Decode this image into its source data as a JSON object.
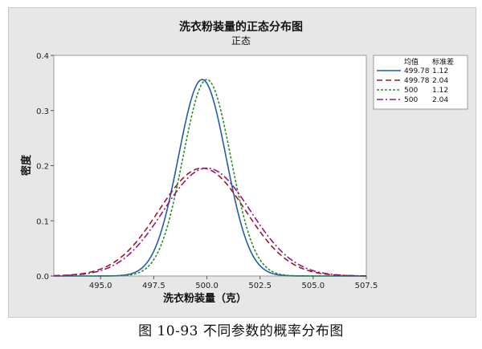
{
  "caption": "图 10-93  不同参数的概率分布图",
  "chart_data": {
    "type": "line",
    "title": "洗衣粉装量的正态分布图",
    "subtitle": "正态",
    "xlabel": "洗衣粉装量（克）",
    "ylabel": "密度",
    "xlim": [
      492.8,
      507.5
    ],
    "ylim": [
      0,
      0.4
    ],
    "xticks": [
      "495.0",
      "497.5",
      "500.0",
      "502.5",
      "505.0",
      "507.5"
    ],
    "yticks": [
      "0.0",
      "0.1",
      "0.2",
      "0.3",
      "0.4"
    ],
    "grid": false,
    "legend": {
      "position": "top-right",
      "header_mean": "均值",
      "header_sd": "标准差"
    },
    "series": [
      {
        "mean": "499.78",
        "sd": "1.12",
        "mu": 499.78,
        "sigma": 1.12,
        "color": "#1f5fa8",
        "dash": ""
      },
      {
        "mean": "499.78",
        "sd": "2.04",
        "mu": 499.78,
        "sigma": 2.04,
        "color": "#9b1b1b",
        "dash": "7,4"
      },
      {
        "mean": "500",
        "sd": "1.12",
        "mu": 500,
        "sigma": 1.12,
        "color": "#2e8b2e",
        "dash": "3,2"
      },
      {
        "mean": "500",
        "sd": "2.04",
        "mu": 500,
        "sigma": 2.04,
        "color": "#8b1a8b",
        "dash": "8,3,2,3"
      }
    ]
  }
}
